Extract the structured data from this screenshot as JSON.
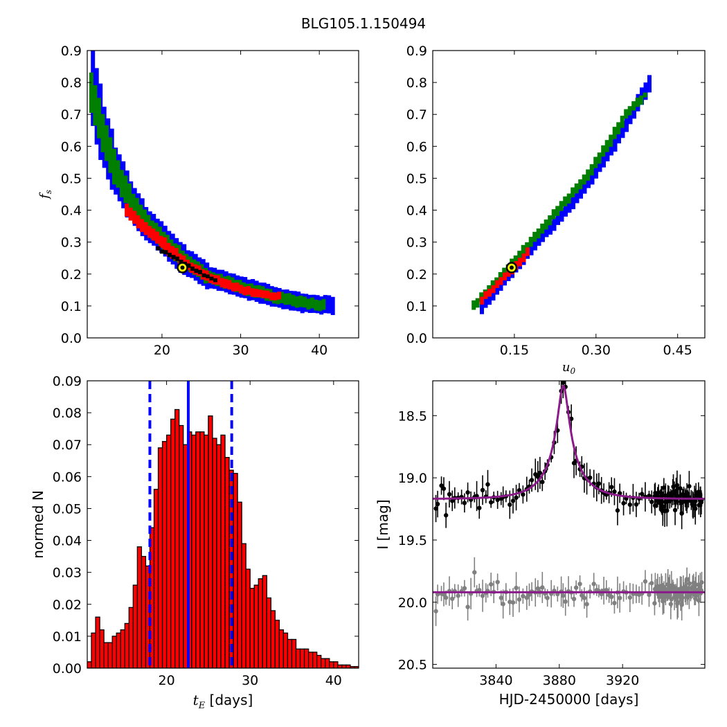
{
  "suptitle": "BLG105.1.150494",
  "colors": {
    "blue": "#0000ff",
    "green": "#007f00",
    "red": "#ff0000",
    "black": "#000000",
    "gray": "#808080",
    "purple": "#8b1a8b",
    "marker_fill": "#ffff00"
  },
  "chart_data": [
    {
      "type": "heatmap",
      "panel": "fs_vs_tE",
      "xlabel": "",
      "ylabel": "f_s",
      "xlim": [
        10.5,
        45
      ],
      "ylim": [
        0.0,
        0.9
      ],
      "xticks": [
        20,
        30,
        40
      ],
      "yticks": [
        0.0,
        0.1,
        0.2,
        0.3,
        0.4,
        0.5,
        0.6,
        0.7,
        0.8,
        0.9
      ],
      "best_fit": {
        "x": 22.6,
        "y": 0.22
      },
      "ridge": {
        "blue": [
          [
            11.2,
            0.78
          ],
          [
            12.5,
            0.64
          ],
          [
            14,
            0.53
          ],
          [
            16,
            0.43
          ],
          [
            18,
            0.36
          ],
          [
            20,
            0.31
          ],
          [
            23,
            0.24
          ],
          [
            26,
            0.19
          ],
          [
            30,
            0.16
          ],
          [
            34,
            0.13
          ],
          [
            38,
            0.11
          ],
          [
            42,
            0.1
          ]
        ],
        "green": [
          [
            11.0,
            0.77
          ],
          [
            12.5,
            0.64
          ],
          [
            14,
            0.53
          ],
          [
            16,
            0.43
          ],
          [
            18,
            0.36
          ],
          [
            20,
            0.31
          ],
          [
            23,
            0.24
          ],
          [
            26,
            0.19
          ],
          [
            30,
            0.16
          ],
          [
            34,
            0.13
          ],
          [
            38,
            0.11
          ],
          [
            41,
            0.1
          ]
        ],
        "red": [
          [
            15.5,
            0.4
          ],
          [
            18,
            0.34
          ],
          [
            20,
            0.3
          ],
          [
            23,
            0.23
          ],
          [
            26,
            0.19
          ],
          [
            29,
            0.16
          ],
          [
            32,
            0.14
          ],
          [
            35,
            0.13
          ]
        ],
        "black": [
          [
            19.5,
            0.28
          ],
          [
            21,
            0.26
          ],
          [
            23,
            0.23
          ],
          [
            25,
            0.2
          ],
          [
            27,
            0.18
          ]
        ]
      }
    },
    {
      "type": "heatmap",
      "panel": "fs_vs_u0",
      "xlabel": "u_0",
      "ylabel": "",
      "xlim": [
        0.0,
        0.5
      ],
      "ylim": [
        0.0,
        0.9
      ],
      "xticks": [
        0.15,
        0.3,
        0.45
      ],
      "yticks": [
        0.0,
        0.1,
        0.2,
        0.3,
        0.4,
        0.5,
        0.6,
        0.7,
        0.8,
        0.9
      ],
      "best_fit": {
        "x": 0.145,
        "y": 0.22
      },
      "ridge": {
        "blue": [
          [
            0.09,
            0.1
          ],
          [
            0.14,
            0.2
          ],
          [
            0.19,
            0.3
          ],
          [
            0.245,
            0.4
          ],
          [
            0.29,
            0.5
          ],
          [
            0.33,
            0.6
          ],
          [
            0.365,
            0.7
          ],
          [
            0.4,
            0.8
          ]
        ],
        "green": [
          [
            0.075,
            0.1
          ],
          [
            0.13,
            0.2
          ],
          [
            0.18,
            0.3
          ],
          [
            0.23,
            0.4
          ],
          [
            0.28,
            0.5
          ],
          [
            0.32,
            0.6
          ],
          [
            0.355,
            0.7
          ],
          [
            0.39,
            0.76
          ]
        ],
        "red": [
          [
            0.09,
            0.12
          ],
          [
            0.12,
            0.17
          ],
          [
            0.15,
            0.22
          ],
          [
            0.18,
            0.28
          ]
        ]
      }
    },
    {
      "type": "bar",
      "panel": "tE_histogram",
      "xlabel": "t_E [days]",
      "ylabel": "normed N",
      "xlim": [
        10.5,
        43
      ],
      "ylim": [
        0.0,
        0.09
      ],
      "xticks": [
        20,
        30,
        40
      ],
      "yticks": [
        0.0,
        0.01,
        0.02,
        0.03,
        0.04,
        0.05,
        0.06,
        0.07,
        0.08,
        0.09
      ],
      "bin_start": 10.5,
      "bin_width": 0.5,
      "values": [
        0.002,
        0.011,
        0.016,
        0.012,
        0.008,
        0.008,
        0.01,
        0.011,
        0.012,
        0.014,
        0.019,
        0.026,
        0.038,
        0.035,
        0.032,
        0.044,
        0.056,
        0.069,
        0.071,
        0.073,
        0.078,
        0.081,
        0.076,
        0.07,
        0.074,
        0.073,
        0.074,
        0.074,
        0.073,
        0.079,
        0.072,
        0.07,
        0.073,
        0.066,
        0.062,
        0.061,
        0.052,
        0.039,
        0.031,
        0.025,
        0.026,
        0.028,
        0.029,
        0.022,
        0.018,
        0.015,
        0.012,
        0.011,
        0.009,
        0.009,
        0.006,
        0.006,
        0.006,
        0.005,
        0.005,
        0.004,
        0.003,
        0.003,
        0.002,
        0.002,
        0.001,
        0.001,
        0.001,
        0.0005,
        0.0005
      ],
      "median_line": 22.6,
      "interval_lines": [
        18.0,
        27.8
      ]
    },
    {
      "type": "scatter",
      "panel": "light_curve",
      "xlabel": "HJD-2450000 [days]",
      "ylabel": "I [mag]",
      "xlim": [
        3800,
        3972
      ],
      "ylim": [
        20.53,
        18.22
      ],
      "y_inverted": true,
      "xticks": [
        3840,
        3880,
        3920
      ],
      "yticks": [
        18.5,
        19.0,
        19.5,
        20.0,
        20.5
      ],
      "ytick_labels": [
        "18.5",
        "19.0",
        "19.5",
        "20.0",
        "20.5"
      ],
      "model": {
        "t0": 3882.5,
        "u0": 0.145,
        "tE": 22.6,
        "fs": 0.22,
        "I_base": 19.17,
        "I_blend_flat": 19.92
      },
      "series": [
        {
          "role": "event",
          "color": "black"
        },
        {
          "role": "residual",
          "color": "gray"
        }
      ]
    }
  ]
}
